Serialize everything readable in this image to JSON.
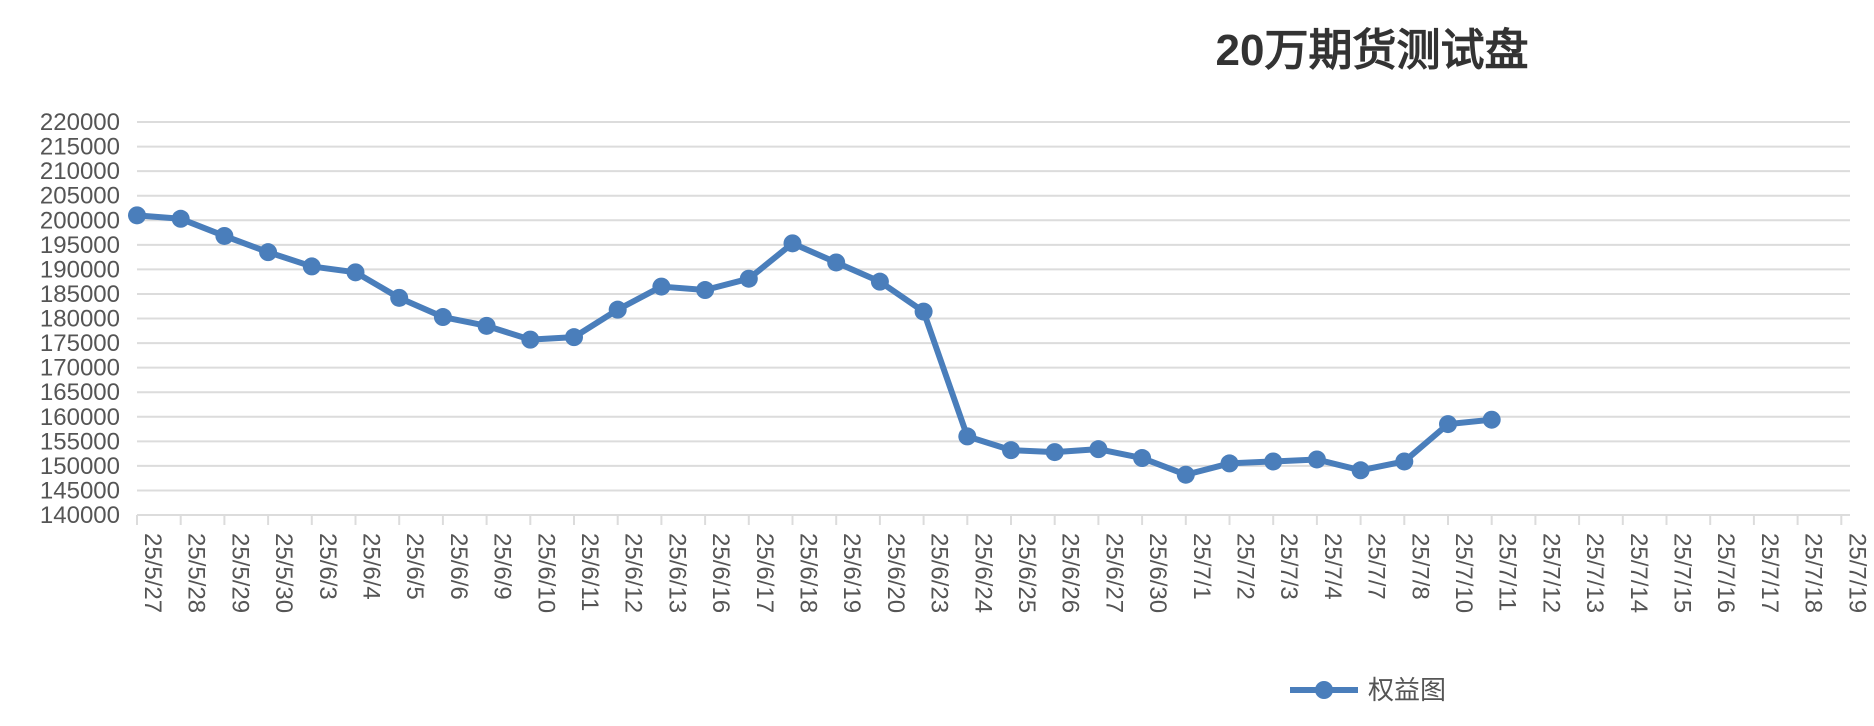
{
  "chart_data": {
    "type": "line",
    "title": "20万期货测试盘",
    "xlabel": "",
    "ylabel": "",
    "ylim": [
      140000,
      220000
    ],
    "yticks": [
      140000,
      145000,
      150000,
      155000,
      160000,
      165000,
      170000,
      175000,
      180000,
      185000,
      190000,
      195000,
      200000,
      205000,
      210000,
      215000,
      220000
    ],
    "grid": true,
    "legend_position": "bottom",
    "categories": [
      "25/5/27",
      "25/5/28",
      "25/5/29",
      "25/5/30",
      "25/6/3",
      "25/6/4",
      "25/6/5",
      "25/6/6",
      "25/6/9",
      "25/6/10",
      "25/6/11",
      "25/6/12",
      "25/6/13",
      "25/6/16",
      "25/6/17",
      "25/6/18",
      "25/6/19",
      "25/6/20",
      "25/6/23",
      "25/6/24",
      "25/6/25",
      "25/6/26",
      "25/6/27",
      "25/6/30",
      "25/7/1",
      "25/7/2",
      "25/7/3",
      "25/7/4",
      "25/7/7",
      "25/7/8",
      "25/7/10",
      "25/7/11",
      "25/7/12",
      "25/7/13",
      "25/7/14",
      "25/7/15",
      "25/7/16",
      "25/7/17",
      "25/7/18",
      "25/7/19"
    ],
    "series": [
      {
        "name": "权益图",
        "color": "#4a7ebb",
        "values": [
          201000,
          200300,
          196800,
          193500,
          190600,
          189400,
          184200,
          180300,
          178500,
          175700,
          176200,
          181800,
          186500,
          185800,
          188100,
          195300,
          191400,
          187500,
          181400,
          156000,
          153200,
          152800,
          153400,
          151600,
          148200,
          150500,
          150900,
          151300,
          149100,
          150900,
          158500,
          159400,
          null,
          null,
          null,
          null,
          null,
          null,
          null,
          null
        ]
      }
    ]
  }
}
